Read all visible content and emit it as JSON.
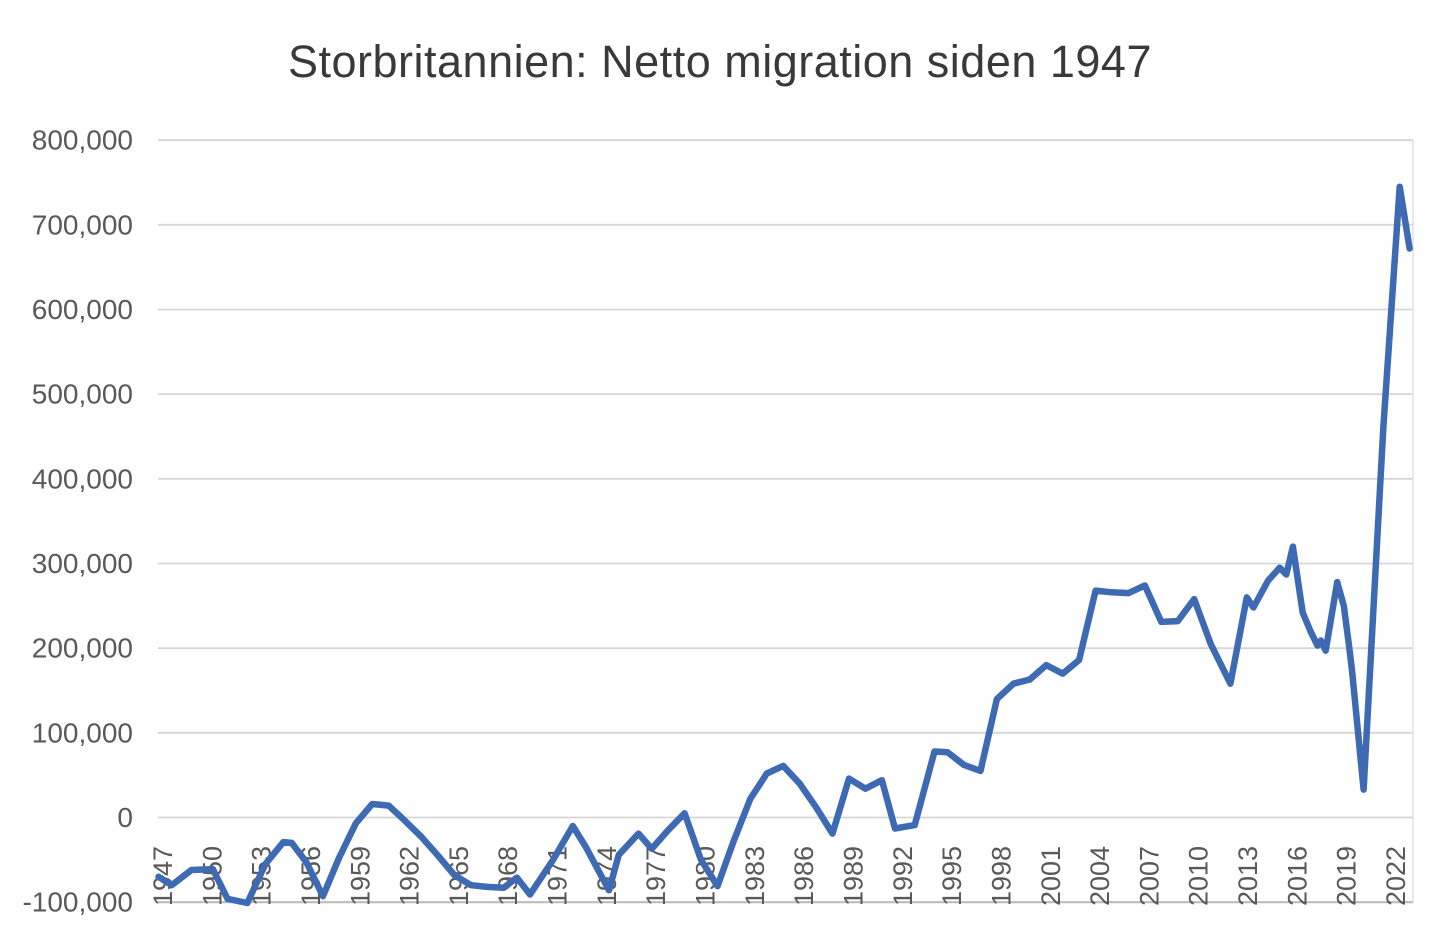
{
  "title": "Storbritannien: Netto migration siden 1947",
  "chart_data": {
    "type": "line",
    "title": "Storbritannien: Netto migration siden 1947",
    "series": [
      {
        "name": "Netto migration",
        "points": [
          [
            1947.0,
            -70000
          ],
          [
            1947.8,
            -80000
          ],
          [
            1949.0,
            -62000
          ],
          [
            1950.3,
            -61000
          ],
          [
            1951.2,
            -96000
          ],
          [
            1952.4,
            -101000
          ],
          [
            1953.5,
            -55000
          ],
          [
            1954.6,
            -29000
          ],
          [
            1955.1,
            -30000
          ],
          [
            1956.0,
            -53000
          ],
          [
            1957.0,
            -93000
          ],
          [
            1958.0,
            -47000
          ],
          [
            1959.0,
            -7000
          ],
          [
            1960.0,
            16000
          ],
          [
            1961.0,
            14000
          ],
          [
            1962.0,
            -4000
          ],
          [
            1963.0,
            -23000
          ],
          [
            1964.0,
            -45000
          ],
          [
            1965.0,
            -68000
          ],
          [
            1966.0,
            -80000
          ],
          [
            1967.0,
            -82000
          ],
          [
            1968.0,
            -83000
          ],
          [
            1968.8,
            -71000
          ],
          [
            1969.6,
            -91000
          ],
          [
            1971.0,
            -50000
          ],
          [
            1972.2,
            -10000
          ],
          [
            1973.0,
            -35000
          ],
          [
            1974.4,
            -86000
          ],
          [
            1975.0,
            -44000
          ],
          [
            1976.2,
            -19000
          ],
          [
            1977.0,
            -37000
          ],
          [
            1978.0,
            -15000
          ],
          [
            1979.0,
            5000
          ],
          [
            1980.0,
            -50000
          ],
          [
            1981.0,
            -81000
          ],
          [
            1982.0,
            -27000
          ],
          [
            1983.0,
            22000
          ],
          [
            1984.0,
            52000
          ],
          [
            1985.0,
            61000
          ],
          [
            1986.0,
            40000
          ],
          [
            1987.0,
            12000
          ],
          [
            1988.0,
            -19000
          ],
          [
            1989.0,
            46000
          ],
          [
            1990.0,
            34000
          ],
          [
            1991.0,
            44000
          ],
          [
            1991.8,
            -13000
          ],
          [
            1993.0,
            -9000
          ],
          [
            1994.2,
            78000
          ],
          [
            1995.0,
            77000
          ],
          [
            1996.0,
            62000
          ],
          [
            1997.0,
            55000
          ],
          [
            1998.0,
            140000
          ],
          [
            1999.0,
            158000
          ],
          [
            2000.0,
            163000
          ],
          [
            2001.0,
            180000
          ],
          [
            2002.0,
            170000
          ],
          [
            2003.0,
            186000
          ],
          [
            2004.0,
            268000
          ],
          [
            2005.0,
            266000
          ],
          [
            2006.0,
            265000
          ],
          [
            2007.0,
            274000
          ],
          [
            2008.0,
            231000
          ],
          [
            2009.0,
            232000
          ],
          [
            2010.0,
            258000
          ],
          [
            2011.0,
            205000
          ],
          [
            2012.2,
            158000
          ],
          [
            2013.2,
            260000
          ],
          [
            2013.6,
            248000
          ],
          [
            2014.5,
            280000
          ],
          [
            2015.2,
            295000
          ],
          [
            2015.6,
            287000
          ],
          [
            2016.0,
            320000
          ],
          [
            2016.6,
            242000
          ],
          [
            2017.1,
            219000
          ],
          [
            2017.5,
            203000
          ],
          [
            2017.7,
            209000
          ],
          [
            2018.0,
            197000
          ],
          [
            2018.7,
            278000
          ],
          [
            2019.1,
            250000
          ],
          [
            2019.4,
            205000
          ],
          [
            2019.6,
            174000
          ],
          [
            2020.3,
            33000
          ],
          [
            2021.5,
            460000
          ],
          [
            2022.5,
            745000
          ],
          [
            2023.1,
            672000
          ]
        ]
      }
    ],
    "x_axis": {
      "tick_start": 1947,
      "tick_end": 2022,
      "tick_step": 3,
      "tick_labels": [
        "1947",
        "1950",
        "1953",
        "1956",
        "1959",
        "1962",
        "1965",
        "1968",
        "1971",
        "1974",
        "1977",
        "1980",
        "1983",
        "1986",
        "1989",
        "1992",
        "1995",
        "1998",
        "2001",
        "2004",
        "2007",
        "2010",
        "2013",
        "2016",
        "2019",
        "2022"
      ],
      "labels_rotated_degrees": -90
    },
    "y_axis": {
      "min": -100000,
      "max": 800000,
      "tick_step": 100000,
      "tick_labels": [
        "-100,000",
        "0",
        "100,000",
        "200,000",
        "300,000",
        "400,000",
        "500,000",
        "600,000",
        "700,000",
        "800,000"
      ]
    },
    "grid": "horizontal",
    "legend": "none",
    "xlim": [
      1947,
      2023.5
    ],
    "ylim": [
      -100000,
      800000
    ]
  },
  "colors": {
    "line": "#3e6ab4",
    "gridline": "#d6d6d6",
    "axis_line": "#bdbdbd",
    "plot_right_border": "#e2e2e2",
    "tick_label": "#595959",
    "title": "#393939",
    "background": "#ffffff"
  }
}
